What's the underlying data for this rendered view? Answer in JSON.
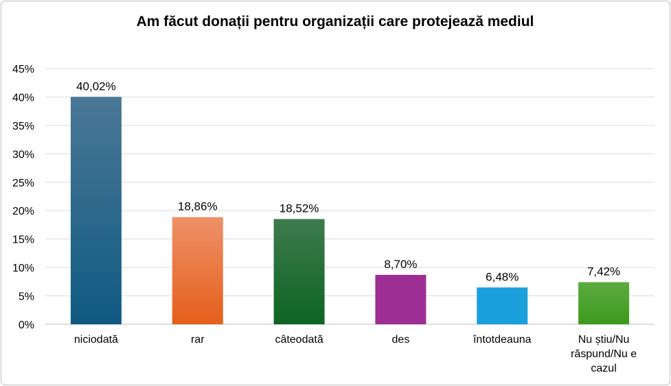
{
  "chart_data": {
    "type": "bar",
    "title": "Am făcut donații pentru organizații care protejează mediul",
    "xlabel": "",
    "ylabel": "",
    "categories": [
      "niciodată",
      "rar",
      "câteodată",
      "des",
      "întotdeauna",
      "Nu știu/Nu răspund/Nu e cazul"
    ],
    "category_lines": [
      [
        "niciodată"
      ],
      [
        "rar"
      ],
      [
        "câteodată"
      ],
      [
        "des"
      ],
      [
        "întotdeauna"
      ],
      [
        "Nu știu/Nu",
        "răspund/Nu e",
        "cazul"
      ]
    ],
    "values": [
      40.02,
      18.86,
      18.52,
      8.7,
      6.48,
      7.42
    ],
    "data_labels": [
      "40,02%",
      "18,86%",
      "18,52%",
      "8,70%",
      "6,48%",
      "7,42%"
    ],
    "y_ticks": [
      "0%",
      "5%",
      "10%",
      "15%",
      "20%",
      "25%",
      "30%",
      "35%",
      "40%",
      "45%"
    ],
    "ylim": [
      0,
      45
    ],
    "grid": true,
    "legend": "none",
    "bar_colors": [
      [
        "#4a7796",
        "#0f5a82"
      ],
      [
        "#ee9168",
        "#e55f1b"
      ],
      [
        "#3e7a4e",
        "#0e6423"
      ],
      [
        "#9d2f94",
        "#9d2f94"
      ],
      [
        "#1aa0db",
        "#1aa0db"
      ],
      [
        "#5cab3f",
        "#3d9a1e"
      ]
    ]
  }
}
